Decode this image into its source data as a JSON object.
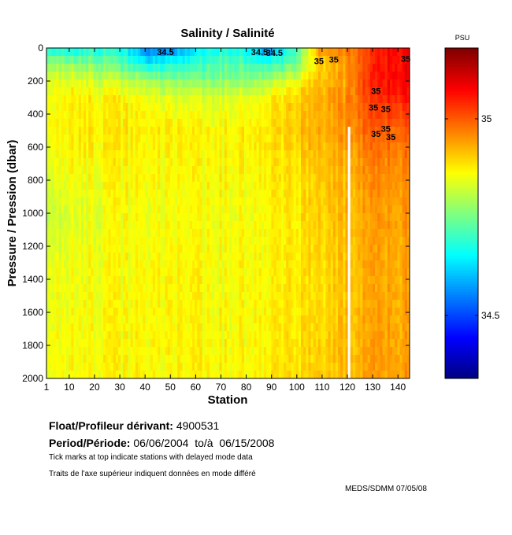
{
  "chart_data": {
    "type": "heatmap",
    "title": "Salinity / Salinité",
    "xlabel": "Station",
    "ylabel": "Pressure / Pression (dbar)",
    "xlim": [
      1,
      145
    ],
    "ylim": [
      2000,
      0
    ],
    "xticks": [
      1,
      10,
      20,
      30,
      40,
      50,
      60,
      70,
      80,
      90,
      100,
      110,
      120,
      130,
      140
    ],
    "yticks": [
      0,
      200,
      400,
      600,
      800,
      1000,
      1200,
      1400,
      1600,
      1800,
      2000
    ],
    "colorbar": {
      "label": "PSU",
      "range": [
        34.34,
        35.18
      ],
      "ticks": [
        34.5,
        35
      ],
      "colormap": "jet"
    },
    "grid_stations": [
      1,
      11,
      21,
      31,
      41,
      51,
      61,
      71,
      81,
      91,
      101,
      111,
      121,
      131,
      141
    ],
    "grid_pressures": [
      0,
      100,
      200,
      300,
      500,
      700,
      1000,
      1400,
      2000
    ],
    "salinity": [
      [
        34.68,
        34.66,
        34.68,
        34.66,
        34.55,
        34.55,
        34.62,
        34.68,
        34.66,
        34.55,
        34.7,
        34.95,
        34.96,
        35.02,
        35.08
      ],
      [
        34.8,
        34.78,
        34.76,
        34.73,
        34.66,
        34.68,
        34.7,
        34.73,
        34.72,
        34.7,
        34.74,
        34.9,
        34.93,
        35.03,
        35.08
      ],
      [
        34.85,
        34.85,
        34.83,
        34.82,
        34.8,
        34.77,
        34.77,
        34.77,
        34.78,
        34.8,
        34.85,
        34.92,
        34.94,
        35.04,
        35.08
      ],
      [
        34.87,
        34.88,
        34.87,
        34.87,
        34.86,
        34.84,
        34.84,
        34.84,
        34.85,
        34.87,
        34.9,
        34.93,
        34.95,
        35.02,
        35.06
      ],
      [
        34.87,
        34.88,
        34.88,
        34.88,
        34.88,
        34.88,
        34.87,
        34.87,
        34.88,
        34.89,
        34.91,
        34.93,
        34.95,
        34.99,
        35.0
      ],
      [
        34.86,
        34.87,
        34.87,
        34.87,
        34.87,
        34.87,
        34.87,
        34.87,
        34.87,
        34.88,
        34.89,
        34.91,
        34.93,
        34.96,
        34.97
      ],
      [
        34.83,
        34.84,
        34.85,
        34.86,
        34.86,
        34.86,
        34.86,
        34.86,
        34.86,
        34.87,
        34.88,
        34.9,
        34.92,
        34.94,
        34.95
      ],
      [
        34.86,
        34.86,
        34.86,
        34.86,
        34.87,
        34.87,
        34.87,
        34.86,
        34.87,
        34.87,
        34.88,
        34.89,
        34.91,
        34.93,
        34.94
      ],
      [
        34.87,
        34.87,
        34.87,
        34.87,
        34.87,
        34.87,
        34.87,
        34.87,
        34.87,
        34.88,
        34.89,
        34.9,
        34.92,
        34.94,
        34.95
      ]
    ],
    "missing": [
      {
        "station": 123,
        "from_pressure": 500,
        "to_pressure": 2000
      }
    ],
    "contour_labels": [
      {
        "text": "34.5",
        "station": 49,
        "pressure": 5
      },
      {
        "text": "34.5",
        "station": 87,
        "pressure": 5
      },
      {
        "text": "34.5",
        "station": 93,
        "pressure": 10
      },
      {
        "text": "35",
        "station": 111,
        "pressure": 60
      },
      {
        "text": "35",
        "station": 117,
        "pressure": 50
      },
      {
        "text": "35",
        "station": 134,
        "pressure": 240
      },
      {
        "text": "35",
        "station": 133,
        "pressure": 340
      },
      {
        "text": "35",
        "station": 138,
        "pressure": 350
      },
      {
        "text": "35",
        "station": 138,
        "pressure": 470
      },
      {
        "text": "35",
        "station": 134,
        "pressure": 500
      },
      {
        "text": "35",
        "station": 140,
        "pressure": 520
      },
      {
        "text": "35",
        "station": 146,
        "pressure": 45
      }
    ]
  },
  "info": {
    "float_label": "Float/Profileur dérivant:",
    "float_id": "4900531",
    "period_label": "Period/Période:",
    "period_start": "06/06/2004",
    "period_sep": "to/à",
    "period_end": "06/15/2008",
    "note_en": "Tick marks at top indicate stations with delayed mode data",
    "note_fr": "Traits de l'axe supérieur indiquent données en mode différé",
    "credit": "MEDS/SDMM  07/05/08"
  }
}
